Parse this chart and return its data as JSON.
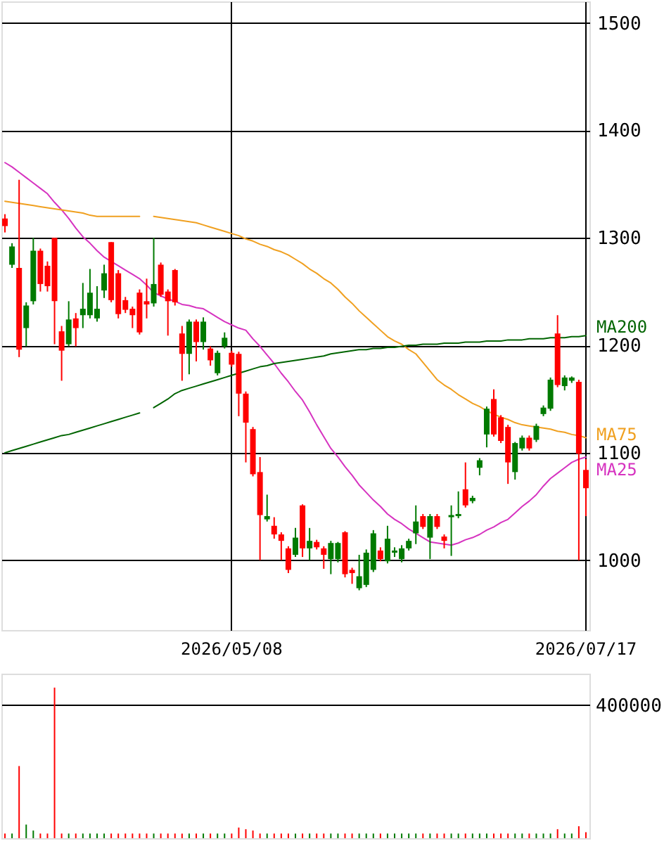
{
  "chart_data": [
    {
      "type": "candlestick",
      "categories": [
        null,
        null,
        null,
        null,
        null,
        null,
        null,
        null,
        null,
        null,
        null,
        null,
        null,
        null,
        null,
        null,
        null,
        null,
        null,
        null,
        null,
        null,
        null,
        null,
        null,
        null,
        null,
        null,
        null,
        null,
        null,
        null,
        "2026/05/08",
        null,
        null,
        null,
        null,
        null,
        null,
        null,
        null,
        null,
        null,
        null,
        null,
        null,
        null,
        null,
        null,
        null,
        null,
        null,
        null,
        null,
        null,
        null,
        null,
        null,
        null,
        null,
        null,
        null,
        null,
        null,
        null,
        null,
        null,
        null,
        null,
        null,
        null,
        null,
        null,
        null,
        null,
        null,
        null,
        null,
        null,
        null,
        null,
        null,
        "2026/07/17"
      ],
      "ohlc": [
        [
          1318,
          1322,
          1305,
          1311
        ],
        [
          1275,
          1295,
          1272,
          1292
        ],
        [
          1272,
          1354,
          1189,
          1196
        ],
        [
          1216,
          1240,
          1199,
          1237
        ],
        [
          1241,
          1300,
          1238,
          1288
        ],
        [
          1288,
          1290,
          1250,
          1257
        ],
        [
          1274,
          1278,
          1250,
          1255
        ],
        [
          1300,
          1300,
          1201,
          1241
        ],
        [
          1213,
          1218,
          1167,
          1195
        ],
        [
          1201,
          1241,
          1199,
          1224
        ],
        [
          1225,
          1230,
          1199,
          1216
        ],
        [
          1228,
          1258,
          1216,
          1234
        ],
        [
          1228,
          1271,
          1225,
          1249
        ],
        [
          1225,
          1255,
          1222,
          1234
        ],
        [
          1251,
          1275,
          1244,
          1267
        ],
        [
          1296,
          1296,
          1240,
          1242
        ],
        [
          1267,
          1270,
          1225,
          1229
        ],
        [
          1242,
          1245,
          1230,
          1233
        ],
        [
          1234,
          1236,
          1216,
          1228
        ],
        [
          1249,
          1252,
          1210,
          1212
        ],
        [
          1241,
          1262,
          1225,
          1238
        ],
        [
          1239,
          1300,
          1236,
          1257
        ],
        [
          1275,
          1277,
          1245,
          1247
        ],
        [
          1250,
          1252,
          1209,
          1241
        ],
        [
          1270,
          1271,
          1237,
          1240
        ],
        [
          1211,
          1218,
          1167,
          1192
        ],
        [
          1192,
          1224,
          1173,
          1222
        ],
        [
          1222,
          1224,
          1185,
          1203
        ],
        [
          1203,
          1226,
          1196,
          1222
        ],
        [
          1197,
          1199,
          1181,
          1186
        ],
        [
          1174,
          1195,
          1172,
          1193
        ],
        [
          1199,
          1212,
          1197,
          1207
        ],
        [
          1193,
          1195,
          1180,
          1182
        ],
        [
          1192,
          1194,
          1134,
          1155
        ],
        [
          1155,
          1157,
          1091,
          1128
        ],
        [
          1122,
          1124,
          1078,
          1080
        ],
        [
          1082,
          1096,
          1000,
          1042
        ],
        [
          1038,
          1061,
          1036,
          1041
        ],
        [
          1032,
          1040,
          1020,
          1024
        ],
        [
          1024,
          1026,
          1000,
          1018
        ],
        [
          1011,
          1013,
          988,
          991
        ],
        [
          1005,
          1030,
          1003,
          1021
        ],
        [
          1051,
          1052,
          1003,
          1011
        ],
        [
          1011,
          1030,
          1000,
          1018
        ],
        [
          1017,
          1019,
          1010,
          1012
        ],
        [
          1011,
          1013,
          992,
          1005
        ],
        [
          1001,
          1018,
          987,
          1016
        ],
        [
          1001,
          1017,
          998,
          1016
        ],
        [
          1026,
          1027,
          984,
          987
        ],
        [
          991,
          993,
          978,
          988
        ],
        [
          974,
          1005,
          972,
          985
        ],
        [
          977,
          1010,
          975,
          1007
        ],
        [
          991,
          1028,
          989,
          1025
        ],
        [
          1009,
          1012,
          999,
          1001
        ],
        [
          999,
          1032,
          997,
          1020
        ],
        [
          1007,
          1012,
          1003,
          1009
        ],
        [
          1001,
          1014,
          998,
          1011
        ],
        [
          1011,
          1020,
          1009,
          1018
        ],
        [
          1025,
          1051,
          1015,
          1036
        ],
        [
          1041,
          1043,
          1029,
          1031
        ],
        [
          1021,
          1043,
          1001,
          1041
        ],
        [
          1041,
          1043,
          1029,
          1031
        ],
        [
          1022,
          1024,
          1011,
          1018
        ],
        [
          1040,
          1051,
          1004,
          1042
        ],
        [
          1041,
          1064,
          1039,
          1043
        ],
        [
          1066,
          1091,
          1049,
          1051
        ],
        [
          1055,
          1060,
          1053,
          1058
        ],
        [
          1086,
          1095,
          1079,
          1093
        ],
        [
          1117,
          1143,
          1105,
          1141
        ],
        [
          1150,
          1159,
          1115,
          1117
        ],
        [
          1133,
          1135,
          1109,
          1111
        ],
        [
          1124,
          1126,
          1071,
          1091
        ],
        [
          1082,
          1110,
          1075,
          1109
        ],
        [
          1104,
          1116,
          1102,
          1114
        ],
        [
          1114,
          1116,
          1102,
          1104
        ],
        [
          1112,
          1127,
          1110,
          1125
        ],
        [
          1136,
          1144,
          1134,
          1142
        ],
        [
          1141,
          1170,
          1139,
          1168
        ],
        [
          1211,
          1228,
          1161,
          1163
        ],
        [
          1162,
          1172,
          1158,
          1170
        ],
        [
          1167,
          1171,
          1165,
          1170
        ],
        [
          1166,
          1168,
          1000,
          1099
        ],
        [
          1084,
          1094,
          1041,
          1067
        ]
      ],
      "colors": [
        "#ff0000",
        "#007a00",
        "#ff0000",
        "#007a00",
        "#007a00",
        "#ff0000",
        "#ff0000",
        "#ff0000",
        "#ff0000",
        "#007a00",
        "#ff0000",
        "#007a00",
        "#007a00",
        "#007a00",
        "#007a00",
        "#ff0000",
        "#ff0000",
        "#ff0000",
        "#ff0000",
        "#ff0000",
        "#ff0000",
        "#007a00",
        "#ff0000",
        "#ff0000",
        "#ff0000",
        "#ff0000",
        "#007a00",
        "#ff0000",
        "#007a00",
        "#ff0000",
        "#007a00",
        "#007a00",
        "#ff0000",
        "#ff0000",
        "#ff0000",
        "#ff0000",
        "#ff0000",
        "#007a00",
        "#ff0000",
        "#ff0000",
        "#ff0000",
        "#007a00",
        "#ff0000",
        "#007a00",
        "#ff0000",
        "#ff0000",
        "#007a00",
        "#007a00",
        "#ff0000",
        "#ff0000",
        "#007a00",
        "#007a00",
        "#007a00",
        "#ff0000",
        "#007a00",
        "#007a00",
        "#007a00",
        "#007a00",
        "#007a00",
        "#ff0000",
        "#007a00",
        "#ff0000",
        "#ff0000",
        "#007a00",
        "#007a00",
        "#ff0000",
        "#007a00",
        "#007a00",
        "#007a00",
        "#ff0000",
        "#ff0000",
        "#ff0000",
        "#007a00",
        "#007a00",
        "#ff0000",
        "#007a00",
        "#007a00",
        "#007a00",
        "#ff0000",
        "#007a00",
        "#007a00",
        "#ff0000",
        "#ff0000"
      ],
      "series": [
        {
          "name": "MA25",
          "type": "line",
          "color": "#d633c0",
          "values": [
            1370,
            1366,
            1361,
            1356,
            1351,
            1346,
            1341,
            1333,
            1326,
            1318,
            1309,
            1301,
            1295,
            1288,
            1282,
            1278,
            1274,
            1270,
            1266,
            1262,
            1256,
            1249,
            1246,
            1243,
            1241,
            1238,
            1237,
            1235,
            1234,
            1230,
            1226,
            1222,
            1219,
            1216,
            1214,
            1206,
            1199,
            1191,
            1183,
            1174,
            1166,
            1157,
            1149,
            1138,
            1126,
            1115,
            1104,
            1096,
            1087,
            1079,
            1070,
            1063,
            1056,
            1050,
            1043,
            1038,
            1034,
            1029,
            1025,
            1021,
            1017,
            1016,
            1015,
            1014,
            1016,
            1019,
            1021,
            1024,
            1028,
            1031,
            1035,
            1038,
            1044,
            1050,
            1055,
            1061,
            1069,
            1076,
            1081,
            1086,
            1091,
            1094,
            1096
          ]
        },
        {
          "name": "MA75",
          "type": "line",
          "color": "#f0a020",
          "values": [
            1334,
            1333,
            1332,
            1331,
            1330,
            1329,
            1328,
            1327,
            1326,
            1325,
            1324,
            1323,
            1321,
            1320,
            1320,
            1320,
            1320,
            1320,
            1320,
            1320,
            null,
            1320,
            1319,
            1318,
            1317,
            1316,
            1315,
            1314,
            1312,
            1310,
            1308,
            1306,
            1304,
            1302,
            1299,
            1297,
            1294,
            1292,
            1289,
            1287,
            1284,
            1280,
            1276,
            1271,
            1267,
            1262,
            1258,
            1252,
            1245,
            1239,
            1232,
            1226,
            1220,
            1214,
            1208,
            1204,
            1201,
            1196,
            1192,
            1184,
            1176,
            1168,
            1163,
            1159,
            1154,
            1150,
            1146,
            1143,
            1139,
            1136,
            1133,
            1131,
            1128,
            1126,
            1125,
            1124,
            1123,
            1122,
            1120,
            1119,
            1117,
            1116,
            1114
          ]
        },
        {
          "name": "MA200",
          "type": "line",
          "color": "#006400",
          "values": [
            1100,
            1102,
            1104,
            1106,
            1108,
            1110,
            1112,
            1114,
            1116,
            1117,
            1119,
            1121,
            1123,
            1125,
            1127,
            1129,
            1131,
            1133,
            1135,
            1137,
            null,
            1142,
            1146,
            1150,
            1155,
            1158,
            1160,
            1162,
            1164,
            1166,
            1168,
            1170,
            1172,
            1174,
            1176,
            1178,
            1180,
            1181,
            1183,
            1184,
            1185,
            1186,
            1187,
            1188,
            1189,
            1190,
            1192,
            1193,
            1194,
            1195,
            1196,
            1196,
            1197,
            1197,
            1198,
            1198,
            1199,
            1200,
            1200,
            1201,
            1201,
            1201,
            1202,
            1202,
            1202,
            1203,
            1203,
            1203,
            1204,
            1204,
            1204,
            1205,
            1205,
            1205,
            1206,
            1206,
            1206,
            1207,
            1207,
            1207,
            1208,
            1208,
            1209
          ]
        }
      ],
      "ylim": [
        935,
        1520
      ],
      "yticks": [
        1000,
        1100,
        1200,
        1300,
        1400,
        1500
      ],
      "grid": true
    },
    {
      "type": "bar",
      "tick_labels": "y",
      "grid": "y",
      "ylim": [
        0,
        495000
      ],
      "yticks": [
        400000
      ],
      "categories": [
        null,
        null,
        null,
        null,
        null,
        null,
        null,
        null,
        null,
        null,
        null,
        null,
        null,
        null,
        null,
        null,
        null,
        null,
        null,
        null,
        null,
        null,
        null,
        null,
        null,
        null,
        null,
        null,
        null,
        null,
        null,
        null,
        null,
        null,
        null,
        null,
        null,
        null,
        null,
        null,
        null,
        null,
        null,
        null,
        null,
        null,
        null,
        null,
        null,
        null,
        null,
        null,
        null,
        null,
        null,
        null,
        null,
        null,
        null,
        null,
        null,
        null,
        null,
        null,
        null,
        null,
        null,
        null,
        null,
        null,
        null,
        null,
        null,
        null,
        null,
        null,
        null,
        null,
        null,
        null,
        null,
        null,
        null
      ],
      "values": [
        14000,
        14000,
        217000,
        41000,
        23000,
        14000,
        14000,
        453000,
        14000,
        14000,
        14000,
        14000,
        14000,
        14000,
        14000,
        14000,
        14000,
        14000,
        14000,
        14000,
        14000,
        14000,
        14000,
        14000,
        14000,
        14000,
        14000,
        14000,
        14000,
        14000,
        14000,
        14000,
        14000,
        32000,
        27000,
        23000,
        14000,
        14000,
        14000,
        14000,
        14000,
        14000,
        14000,
        14000,
        14000,
        14000,
        14000,
        14000,
        14000,
        14000,
        14000,
        14000,
        14000,
        14000,
        14000,
        14000,
        14000,
        14000,
        14000,
        14000,
        14000,
        14000,
        14000,
        14000,
        14000,
        14000,
        14000,
        14000,
        14000,
        14000,
        14000,
        14000,
        14000,
        14000,
        14000,
        14000,
        14000,
        14000,
        27000,
        14000,
        14000,
        36000,
        18000
      ],
      "colors": [
        "#ff0000",
        "#007a00",
        "#ff0000",
        "#007a00",
        "#007a00",
        "#ff0000",
        "#ff0000",
        "#ff0000",
        "#ff0000",
        "#007a00",
        "#ff0000",
        "#007a00",
        "#007a00",
        "#007a00",
        "#007a00",
        "#ff0000",
        "#ff0000",
        "#ff0000",
        "#ff0000",
        "#ff0000",
        "#ff0000",
        "#007a00",
        "#ff0000",
        "#ff0000",
        "#ff0000",
        "#ff0000",
        "#007a00",
        "#ff0000",
        "#007a00",
        "#ff0000",
        "#007a00",
        "#007a00",
        "#ff0000",
        "#ff0000",
        "#ff0000",
        "#ff0000",
        "#ff0000",
        "#007a00",
        "#ff0000",
        "#ff0000",
        "#ff0000",
        "#007a00",
        "#ff0000",
        "#007a00",
        "#ff0000",
        "#ff0000",
        "#007a00",
        "#007a00",
        "#ff0000",
        "#ff0000",
        "#007a00",
        "#007a00",
        "#007a00",
        "#ff0000",
        "#007a00",
        "#007a00",
        "#007a00",
        "#007a00",
        "#007a00",
        "#ff0000",
        "#007a00",
        "#ff0000",
        "#ff0000",
        "#007a00",
        "#007a00",
        "#ff0000",
        "#007a00",
        "#007a00",
        "#007a00",
        "#ff0000",
        "#ff0000",
        "#ff0000",
        "#007a00",
        "#007a00",
        "#ff0000",
        "#007a00",
        "#007a00",
        "#007a00",
        "#ff0000",
        "#007a00",
        "#007a00",
        "#ff0000",
        "#ff0000"
      ]
    }
  ]
}
